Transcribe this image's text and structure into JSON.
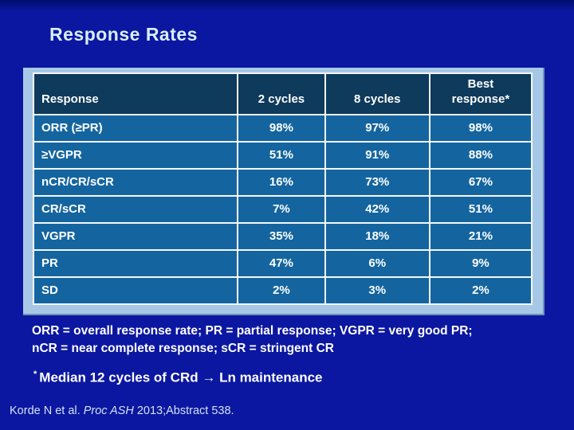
{
  "theme": {
    "background": "#0B17A0",
    "title": "#D8EEF8",
    "placeholder": "#A6C8E6",
    "header_bg": "#0E3A5C",
    "row_bg": "#14659F",
    "grid": "#F4F8FC",
    "text": "#FFFFFF",
    "citation": "#D5E2F2"
  },
  "slide": {
    "title": "Response Rates"
  },
  "table": {
    "columns": [
      "Response",
      "2 cycles",
      "8 cycles",
      "Best response*"
    ],
    "rows": [
      {
        "label": "ORR (≥PR)",
        "values": [
          "98%",
          "97%",
          "98%"
        ]
      },
      {
        "label": "≥VGPR",
        "values": [
          "51%",
          "91%",
          "88%"
        ]
      },
      {
        "label": "nCR/CR/sCR",
        "values": [
          "16%",
          "73%",
          "67%"
        ]
      },
      {
        "label": "CR/sCR",
        "values": [
          "7%",
          "42%",
          "51%"
        ]
      },
      {
        "label": "VGPR",
        "values": [
          "35%",
          "18%",
          "21%"
        ]
      },
      {
        "label": "PR",
        "values": [
          "47%",
          "6%",
          "9%"
        ]
      },
      {
        "label": "SD",
        "values": [
          "2%",
          "3%",
          "2%"
        ]
      }
    ]
  },
  "footnotes": {
    "definitions_line1": "ORR = overall response rate; PR = partial response; VGPR = very good PR;",
    "definitions_line2": "nCR = near complete response; sCR = stringent CR",
    "asterisk": "*",
    "median_note": "Median 12 cycles of CRd → Ln maintenance",
    "citation_prefix": "Korde N et al. ",
    "citation_italic": "Proc ASH",
    "citation_suffix": " 2013;Abstract 538."
  }
}
